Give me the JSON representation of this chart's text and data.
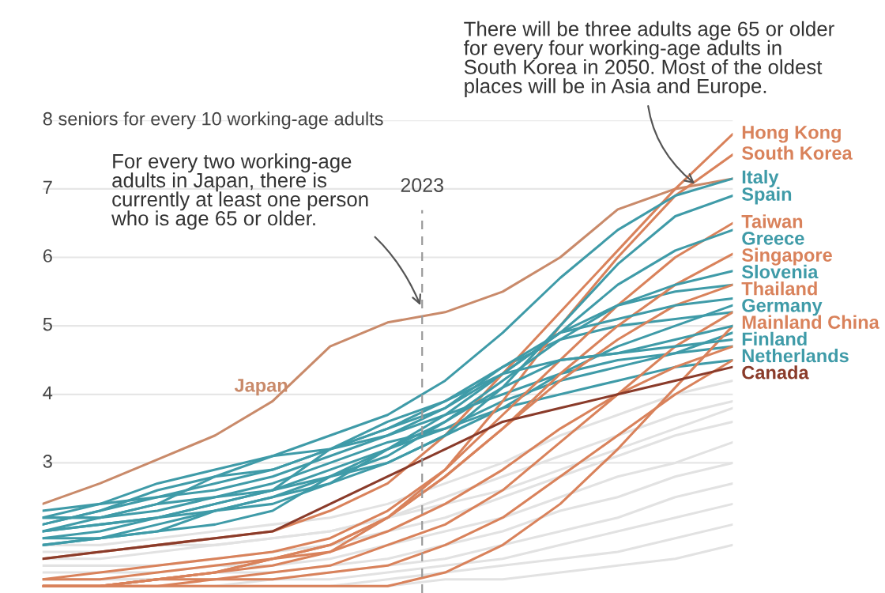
{
  "chart_data": {
    "type": "line",
    "categories": [
      null,
      null,
      null,
      null,
      null,
      null,
      null,
      null,
      null,
      null,
      null,
      null,
      null
    ],
    "ylim": [
      1.1,
      8
    ],
    "yticks": [
      3,
      4,
      5,
      6,
      7,
      {
        "value": 8,
        "label": "8 seniors for every 10 working-age adults"
      }
    ],
    "tick_labels": "y",
    "grid": "y",
    "legend": false,
    "annotations": [
      "For every two working-age\nadults in Japan, there is\ncurrently at least one person\nwho is age 65 or older.",
      "There will be three adults age 65 or older\nfor every four working-age adults in\nSouth Korea in 2050. Most of the oldest\nplaces will be in Asia and Europe.",
      "2023"
    ],
    "series": [
      {
        "color": "#e2e2e2",
        "values": [
          1.8,
          1.8,
          1.9,
          2.0,
          2.1,
          2.2,
          2.4,
          2.7,
          3.0,
          3.4,
          3.7,
          4.0,
          4.2
        ]
      },
      {
        "color": "#e2e2e2",
        "values": [
          1.6,
          1.6,
          1.7,
          1.8,
          1.9,
          2.0,
          2.2,
          2.5,
          2.8,
          3.1,
          3.4,
          3.7,
          3.9
        ]
      },
      {
        "color": "#e2e2e2",
        "values": [
          1.5,
          1.5,
          1.5,
          1.6,
          1.7,
          1.8,
          2.0,
          2.2,
          2.5,
          2.8,
          3.1,
          3.4,
          3.6
        ]
      },
      {
        "color": "#e2e2e2",
        "values": [
          1.4,
          1.4,
          1.4,
          1.5,
          1.5,
          1.6,
          1.8,
          2.0,
          2.2,
          2.5,
          2.8,
          3.0,
          3.3
        ]
      },
      {
        "color": "#e2e2e2",
        "values": [
          1.3,
          1.3,
          1.3,
          1.4,
          1.4,
          1.5,
          1.6,
          1.8,
          2.0,
          2.3,
          2.5,
          2.8,
          3.0
        ]
      },
      {
        "color": "#e2e2e2",
        "values": [
          1.3,
          1.3,
          1.3,
          1.3,
          1.3,
          1.4,
          1.5,
          1.6,
          1.8,
          2.0,
          2.2,
          2.5,
          2.7
        ]
      },
      {
        "color": "#e2e2e2",
        "values": [
          1.2,
          1.2,
          1.2,
          1.2,
          1.3,
          1.3,
          1.4,
          1.5,
          1.6,
          1.8,
          2.0,
          2.2,
          2.4
        ]
      },
      {
        "color": "#e2e2e2",
        "values": [
          1.2,
          1.2,
          1.2,
          1.2,
          1.2,
          1.2,
          1.3,
          1.4,
          1.5,
          1.6,
          1.7,
          1.9,
          2.1
        ]
      },
      {
        "color": "#e2e2e2",
        "values": [
          1.2,
          1.2,
          1.2,
          1.2,
          1.2,
          1.2,
          1.2,
          1.3,
          1.3,
          1.4,
          1.5,
          1.6,
          1.8
        ]
      },
      {
        "color": "#e2e2e2",
        "values": [
          1.7,
          1.7,
          1.8,
          1.8,
          1.9,
          2.0,
          2.2,
          2.4,
          2.6,
          2.9,
          3.2,
          3.5,
          3.8
        ]
      },
      {
        "color": "#3f9ba8",
        "values": [
          2.1,
          2.3,
          2.5,
          2.7,
          2.9,
          3.2,
          3.5,
          3.9,
          4.4,
          4.8,
          5.0,
          5.1,
          5.2
        ]
      },
      {
        "color": "#3f9ba8",
        "values": [
          2.3,
          2.4,
          2.5,
          2.6,
          2.8,
          3.1,
          3.4,
          3.7,
          4.0,
          4.3,
          4.5,
          4.6,
          4.7
        ]
      },
      {
        "color": "#3f9ba8",
        "values": [
          1.9,
          2.0,
          2.2,
          2.4,
          2.6,
          2.9,
          3.2,
          3.5,
          3.9,
          4.2,
          4.4,
          4.6,
          4.9
        ]
      },
      {
        "color": "#3f9ba8",
        "values": [
          2.2,
          2.2,
          2.3,
          2.5,
          2.7,
          3.0,
          3.3,
          3.5,
          3.8,
          4.0,
          4.2,
          4.4,
          4.5
        ]
      },
      {
        "color": "#3f9ba8",
        "values": [
          1.8,
          1.9,
          2.1,
          2.3,
          2.5,
          2.7,
          3.0,
          3.4,
          3.8,
          4.3,
          4.7,
          5.0,
          5.3
        ]
      },
      {
        "color": "#3f9ba8",
        "values": [
          2.0,
          2.1,
          2.2,
          2.3,
          2.5,
          2.8,
          3.2,
          3.7,
          4.3,
          4.9,
          5.3,
          5.5,
          5.6
        ]
      },
      {
        "color": "#d9825b",
        "values": [
          1.3,
          1.3,
          1.4,
          1.5,
          1.6,
          1.7,
          2.0,
          2.4,
          2.9,
          3.5,
          4.0,
          4.4,
          4.7
        ]
      },
      {
        "color": "#d9825b",
        "values": [
          1.2,
          1.2,
          1.2,
          1.3,
          1.3,
          1.4,
          1.5,
          1.8,
          2.2,
          2.8,
          3.4,
          4.0,
          4.5
        ]
      },
      {
        "color": "#d9825b",
        "values": [
          1.2,
          1.2,
          1.2,
          1.2,
          1.2,
          1.2,
          1.2,
          1.4,
          1.8,
          2.4,
          3.2,
          4.1,
          5.0
        ]
      },
      {
        "name": "Japan",
        "color": "#c98a6a",
        "values": [
          2.4,
          2.7,
          3.05,
          3.4,
          3.9,
          4.7,
          5.05,
          5.2,
          5.5,
          6.0,
          6.7,
          7.0,
          7.15
        ]
      },
      {
        "name": "Hong Kong",
        "color": "#d9825b",
        "values": [
          1.6,
          1.7,
          1.8,
          1.9,
          2.0,
          2.3,
          2.7,
          3.4,
          4.3,
          5.2,
          6.1,
          7.0,
          7.8
        ]
      },
      {
        "name": "South Korea",
        "color": "#d9825b",
        "values": [
          1.2,
          1.2,
          1.3,
          1.4,
          1.6,
          1.8,
          2.2,
          2.9,
          3.9,
          5.0,
          6.0,
          6.9,
          7.5
        ]
      },
      {
        "name": "Italy",
        "color": "#3f9ba8",
        "values": [
          2.2,
          2.4,
          2.7,
          2.9,
          3.1,
          3.4,
          3.7,
          4.2,
          4.9,
          5.7,
          6.4,
          6.9,
          7.15
        ]
      },
      {
        "name": "Spain",
        "color": "#3f9ba8",
        "values": [
          2.0,
          2.2,
          2.4,
          2.5,
          2.6,
          2.8,
          3.0,
          3.4,
          4.1,
          5.0,
          5.9,
          6.6,
          6.9
        ]
      },
      {
        "name": "Taiwan",
        "color": "#d9825b",
        "values": [
          1.3,
          1.4,
          1.5,
          1.6,
          1.7,
          1.9,
          2.3,
          2.9,
          3.7,
          4.5,
          5.3,
          6.0,
          6.5
        ]
      },
      {
        "name": "Greece",
        "color": "#3f9ba8",
        "values": [
          2.1,
          2.3,
          2.6,
          2.8,
          2.9,
          3.2,
          3.5,
          3.8,
          4.3,
          4.9,
          5.6,
          6.1,
          6.4
        ]
      },
      {
        "name": "Singapore",
        "color": "#d9825b",
        "values": [
          1.2,
          1.2,
          1.3,
          1.4,
          1.5,
          1.7,
          2.2,
          2.8,
          3.5,
          4.3,
          5.0,
          5.6,
          6.05
        ]
      },
      {
        "name": "Slovenia",
        "color": "#3f9ba8",
        "values": [
          1.8,
          1.9,
          2.0,
          2.3,
          2.4,
          2.7,
          3.2,
          3.6,
          4.2,
          4.8,
          5.3,
          5.6,
          5.8
        ]
      },
      {
        "name": "Thailand",
        "color": "#d9825b",
        "values": [
          1.2,
          1.2,
          1.3,
          1.4,
          1.6,
          1.8,
          2.2,
          2.8,
          3.5,
          4.2,
          4.8,
          5.3,
          5.6
        ]
      },
      {
        "name": "Germany",
        "color": "#3f9ba8",
        "values": [
          2.2,
          2.2,
          2.4,
          2.8,
          3.1,
          3.2,
          3.4,
          3.8,
          4.4,
          4.9,
          5.1,
          5.3,
          5.4
        ]
      },
      {
        "name": "Mainland China",
        "color": "#d9825b",
        "values": [
          1.2,
          1.2,
          1.3,
          1.3,
          1.4,
          1.5,
          1.8,
          2.1,
          2.6,
          3.3,
          4.0,
          4.7,
          5.2
        ]
      },
      {
        "name": "Finland",
        "color": "#3f9ba8",
        "values": [
          2.0,
          2.1,
          2.2,
          2.4,
          2.6,
          3.2,
          3.6,
          3.9,
          4.3,
          4.5,
          4.6,
          4.8,
          5.0
        ]
      },
      {
        "name": "Netherlands",
        "color": "#3f9ba8",
        "values": [
          1.9,
          1.9,
          2.0,
          2.1,
          2.3,
          2.8,
          3.1,
          3.6,
          4.1,
          4.5,
          4.6,
          4.7,
          4.8
        ]
      },
      {
        "name": "Canada",
        "color": "#8a3b2a",
        "values": [
          1.6,
          1.7,
          1.8,
          1.9,
          2.0,
          2.4,
          2.8,
          3.2,
          3.6,
          3.8,
          4.0,
          4.2,
          4.4
        ]
      }
    ]
  }
}
